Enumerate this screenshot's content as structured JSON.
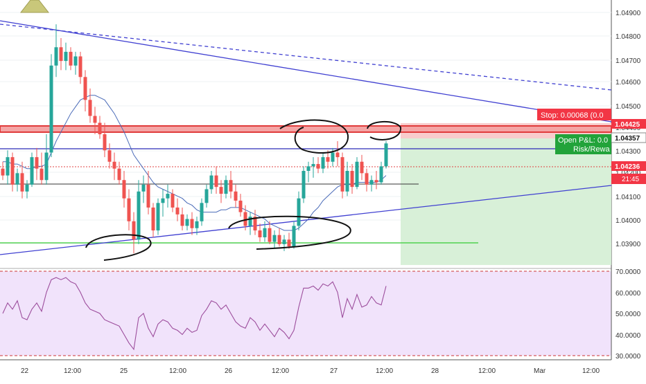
{
  "price_axis": {
    "ticks": [
      "1.04900",
      "1.04800",
      "1.04700",
      "1.04600",
      "1.04500",
      "1.04400",
      "1.04300",
      "1.04200",
      "1.04100",
      "1.04000",
      "1.03900"
    ]
  },
  "badges": {
    "stop_price": "1.04425",
    "current_price": "1.04357",
    "mid_price": "1.04236",
    "timer": "21:45"
  },
  "labels": {
    "stop": "Stop: 0.00068 (0.0",
    "open_pnl": "Open P&L: 0.0",
    "risk_reward": "Risk/Rewa"
  },
  "rsi_axis": {
    "ticks": [
      "70.0000",
      "60.0000",
      "50.0000",
      "40.0000",
      "30.0000"
    ]
  },
  "time_axis": {
    "ticks": [
      "22",
      "12:00",
      "25",
      "12:00",
      "26",
      "12:00",
      "27",
      "12:00",
      "28",
      "12:00",
      "Mar",
      "12:00"
    ]
  },
  "colors": {
    "bull": "#26a69a",
    "bear": "#ef5350",
    "trend": "#3f3fd1",
    "ma": "#4a6bb8",
    "rsi": "#9c4d9c",
    "stop_zone": "#f7c6c6",
    "target_zone": "#d4eed4"
  },
  "chart_data": {
    "type": "candlestick",
    "price_range": [
      1.0382,
      1.0495
    ],
    "rsi_range": [
      30,
      70
    ],
    "candles": [
      [
        1.0425,
        1.0428,
        1.042,
        1.0422
      ],
      [
        1.0422,
        1.0433,
        1.0418,
        1.043
      ],
      [
        1.043,
        1.0432,
        1.0415,
        1.0418
      ],
      [
        1.0418,
        1.0425,
        1.0415,
        1.0423
      ],
      [
        1.0423,
        1.0428,
        1.0412,
        1.0415
      ],
      [
        1.0415,
        1.042,
        1.0412,
        1.0418
      ],
      [
        1.0418,
        1.0432,
        1.0417,
        1.043
      ],
      [
        1.043,
        1.0434,
        1.042,
        1.0425
      ],
      [
        1.0425,
        1.0432,
        1.0418,
        1.042
      ],
      [
        1.042,
        1.044,
        1.0418,
        1.0432
      ],
      [
        1.0432,
        1.0475,
        1.043,
        1.047
      ],
      [
        1.047,
        1.0488,
        1.0465,
        1.0478
      ],
      [
        1.0478,
        1.0482,
        1.0468,
        1.0472
      ],
      [
        1.0472,
        1.048,
        1.0468,
        1.0476
      ],
      [
        1.0476,
        1.0478,
        1.0468,
        1.047
      ],
      [
        1.047,
        1.0476,
        1.0466,
        1.0474
      ],
      [
        1.0474,
        1.0476,
        1.0462,
        1.0465
      ],
      [
        1.0465,
        1.0468,
        1.045,
        1.0455
      ],
      [
        1.0455,
        1.046,
        1.0445,
        1.0448
      ],
      [
        1.0448,
        1.0452,
        1.044,
        1.0445
      ],
      [
        1.0445,
        1.0448,
        1.0438,
        1.044
      ],
      [
        1.044,
        1.0445,
        1.043,
        1.0433
      ],
      [
        1.0433,
        1.0436,
        1.0425,
        1.0428
      ],
      [
        1.0428,
        1.0432,
        1.042,
        1.0425
      ],
      [
        1.0425,
        1.0428,
        1.0418,
        1.042
      ],
      [
        1.042,
        1.0424,
        1.0408,
        1.0412
      ],
      [
        1.0412,
        1.0416,
        1.0398,
        1.0402
      ],
      [
        1.0402,
        1.0406,
        1.0388,
        1.0394
      ],
      [
        1.0394,
        1.042,
        1.0392,
        1.0415
      ],
      [
        1.0415,
        1.0422,
        1.041,
        1.0418
      ],
      [
        1.0418,
        1.0424,
        1.0405,
        1.0408
      ],
      [
        1.0408,
        1.041,
        1.0395,
        1.0398
      ],
      [
        1.0398,
        1.0412,
        1.0396,
        1.041
      ],
      [
        1.041,
        1.0416,
        1.0404,
        1.0412
      ],
      [
        1.0412,
        1.0418,
        1.0408,
        1.0414
      ],
      [
        1.0414,
        1.0416,
        1.0406,
        1.0408
      ],
      [
        1.0408,
        1.0412,
        1.0402,
        1.0405
      ],
      [
        1.0405,
        1.0408,
        1.0398,
        1.04
      ],
      [
        1.04,
        1.0405,
        1.0398,
        1.0403
      ],
      [
        1.0403,
        1.0406,
        1.0396,
        1.0399
      ],
      [
        1.0399,
        1.0404,
        1.0396,
        1.0402
      ],
      [
        1.0402,
        1.0412,
        1.04,
        1.041
      ],
      [
        1.041,
        1.0418,
        1.0408,
        1.0416
      ],
      [
        1.0416,
        1.0424,
        1.0414,
        1.0422
      ],
      [
        1.0422,
        1.0426,
        1.0414,
        1.0417
      ],
      [
        1.0417,
        1.042,
        1.041,
        1.0414
      ],
      [
        1.0414,
        1.0422,
        1.0412,
        1.042
      ],
      [
        1.042,
        1.0424,
        1.0412,
        1.0415
      ],
      [
        1.0415,
        1.0418,
        1.0408,
        1.0411
      ],
      [
        1.0411,
        1.0414,
        1.0404,
        1.0406
      ],
      [
        1.0406,
        1.0409,
        1.0398,
        1.04
      ],
      [
        1.04,
        1.0406,
        1.0396,
        1.0404
      ],
      [
        1.0404,
        1.0407,
        1.0396,
        1.0398
      ],
      [
        1.0398,
        1.0401,
        1.0393,
        1.0395
      ],
      [
        1.0395,
        1.0402,
        1.0393,
        1.0399
      ],
      [
        1.0399,
        1.0402,
        1.0392,
        1.0393
      ],
      [
        1.0393,
        1.0398,
        1.039,
        1.0396
      ],
      [
        1.0396,
        1.0399,
        1.0391,
        1.0392
      ],
      [
        1.0392,
        1.0396,
        1.0389,
        1.0394
      ],
      [
        1.0394,
        1.0397,
        1.039,
        1.0391
      ],
      [
        1.0391,
        1.0402,
        1.039,
        1.04
      ],
      [
        1.04,
        1.0415,
        1.0398,
        1.0412
      ],
      [
        1.0412,
        1.0426,
        1.041,
        1.0424
      ],
      [
        1.0424,
        1.0428,
        1.0419,
        1.0426
      ],
      [
        1.0426,
        1.043,
        1.0421,
        1.0427
      ],
      [
        1.0427,
        1.043,
        1.0423,
        1.0425
      ],
      [
        1.0425,
        1.0432,
        1.0423,
        1.043
      ],
      [
        1.043,
        1.0433,
        1.0425,
        1.0428
      ],
      [
        1.0428,
        1.0434,
        1.0426,
        1.0432
      ],
      [
        1.0432,
        1.0437,
        1.0426,
        1.043
      ],
      [
        1.043,
        1.0432,
        1.0412,
        1.0415
      ],
      [
        1.0415,
        1.0428,
        1.0413,
        1.0424
      ],
      [
        1.0424,
        1.0427,
        1.0414,
        1.0417
      ],
      [
        1.0417,
        1.043,
        1.0416,
        1.0428
      ],
      [
        1.0428,
        1.0431,
        1.042,
        1.0423
      ],
      [
        1.0423,
        1.0425,
        1.0415,
        1.0418
      ],
      [
        1.0418,
        1.0422,
        1.0415,
        1.042
      ],
      [
        1.042,
        1.0424,
        1.0416,
        1.0419
      ],
      [
        1.0419,
        1.0428,
        1.0418,
        1.0426
      ],
      [
        1.0426,
        1.0437,
        1.0425,
        1.0436
      ]
    ],
    "ma": [
      1.0428,
      1.0428,
      1.0427,
      1.0427,
      1.0426,
      1.0425,
      1.0425,
      1.0426,
      1.0426,
      1.0427,
      1.0432,
      1.0437,
      1.0441,
      1.0445,
      1.0449,
      1.0452,
      1.0455,
      1.0456,
      1.0457,
      1.0457,
      1.0456,
      1.0455,
      1.0452,
      1.0449,
      1.0445,
      1.0441,
      1.0436,
      1.0431,
      1.0428,
      1.0425,
      1.0422,
      1.0419,
      1.0417,
      1.0416,
      1.0415,
      1.0414,
      1.0413,
      1.0412,
      1.041,
      1.0409,
      1.0407,
      1.0406,
      1.0406,
      1.0406,
      1.0406,
      1.0407,
      1.0407,
      1.0408,
      1.0408,
      1.0408,
      1.0407,
      1.0406,
      1.0405,
      1.0404,
      1.0403,
      1.0401,
      1.04,
      1.0399,
      1.0398,
      1.0398,
      1.0398,
      1.0399,
      1.0401,
      1.0403,
      1.0406,
      1.0408,
      1.0411,
      1.0413,
      1.0415,
      1.0417,
      1.0418,
      1.0418,
      1.0418,
      1.0419,
      1.0419,
      1.0419,
      1.0419,
      1.0419,
      1.042,
      1.0422
    ],
    "rsi": [
      50,
      55,
      52,
      56,
      48,
      47,
      52,
      55,
      51,
      60,
      66,
      67,
      66,
      67,
      65,
      64,
      60,
      55,
      52,
      51,
      50,
      47,
      46,
      45,
      44,
      40,
      36,
      33,
      48,
      50,
      43,
      39,
      45,
      47,
      46,
      43,
      42,
      40,
      43,
      41,
      42,
      49,
      52,
      56,
      55,
      52,
      54,
      50,
      46,
      44,
      43,
      48,
      46,
      42,
      45,
      42,
      39,
      43,
      41,
      38,
      42,
      53,
      62,
      62,
      63,
      61,
      64,
      63,
      65,
      60,
      48,
      57,
      52,
      59,
      53,
      54,
      58,
      55,
      54,
      63
    ]
  }
}
